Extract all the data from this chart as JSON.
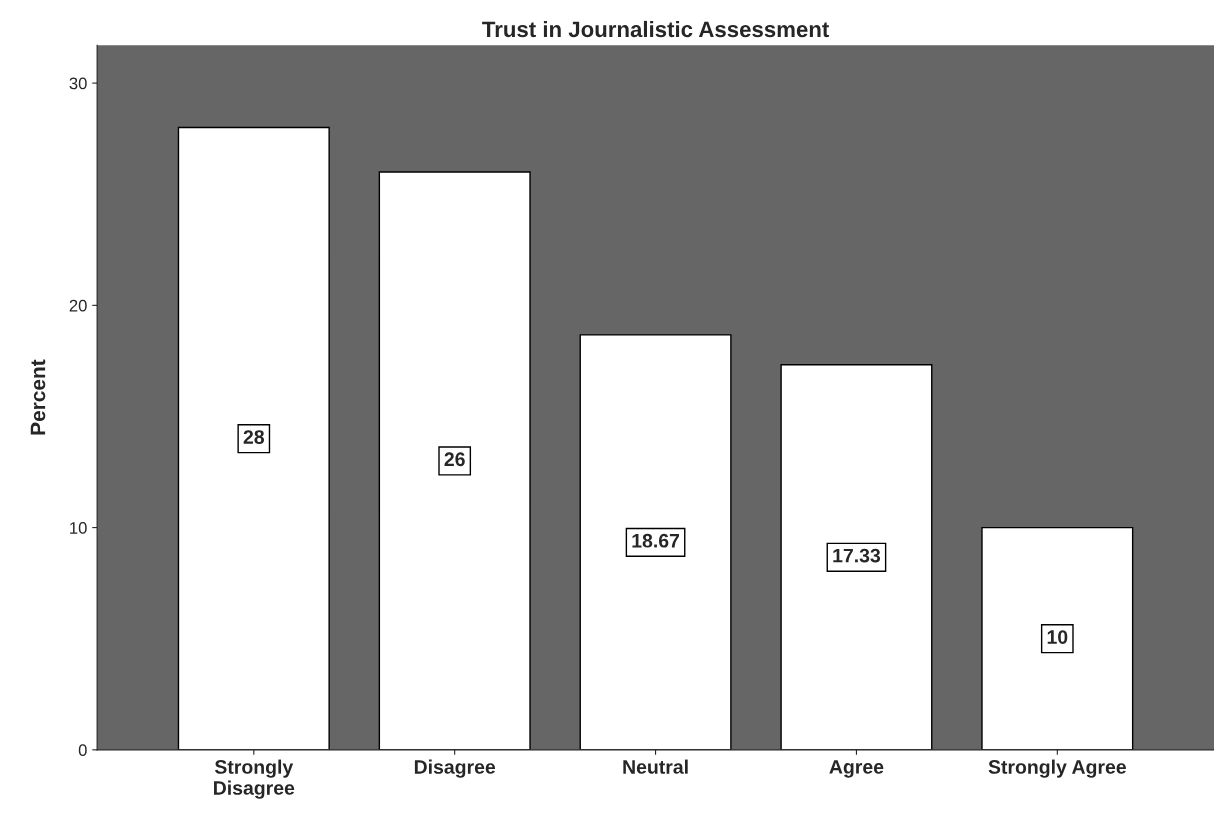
{
  "chart_data": {
    "type": "bar",
    "title": "Trust in Journalistic Assessment",
    "ylabel": "Percent",
    "categories": [
      "Strongly\nDisagree",
      "Disagree",
      "Neutral",
      "Agree",
      "Strongly Agree"
    ],
    "values": [
      28,
      26,
      18.67,
      17.33,
      10
    ],
    "color": "#ffffff",
    "ylim": [
      0,
      31.7
    ],
    "yticks": [
      0,
      10,
      20,
      30
    ],
    "data_labels": true,
    "grid": false,
    "legend": false
  }
}
